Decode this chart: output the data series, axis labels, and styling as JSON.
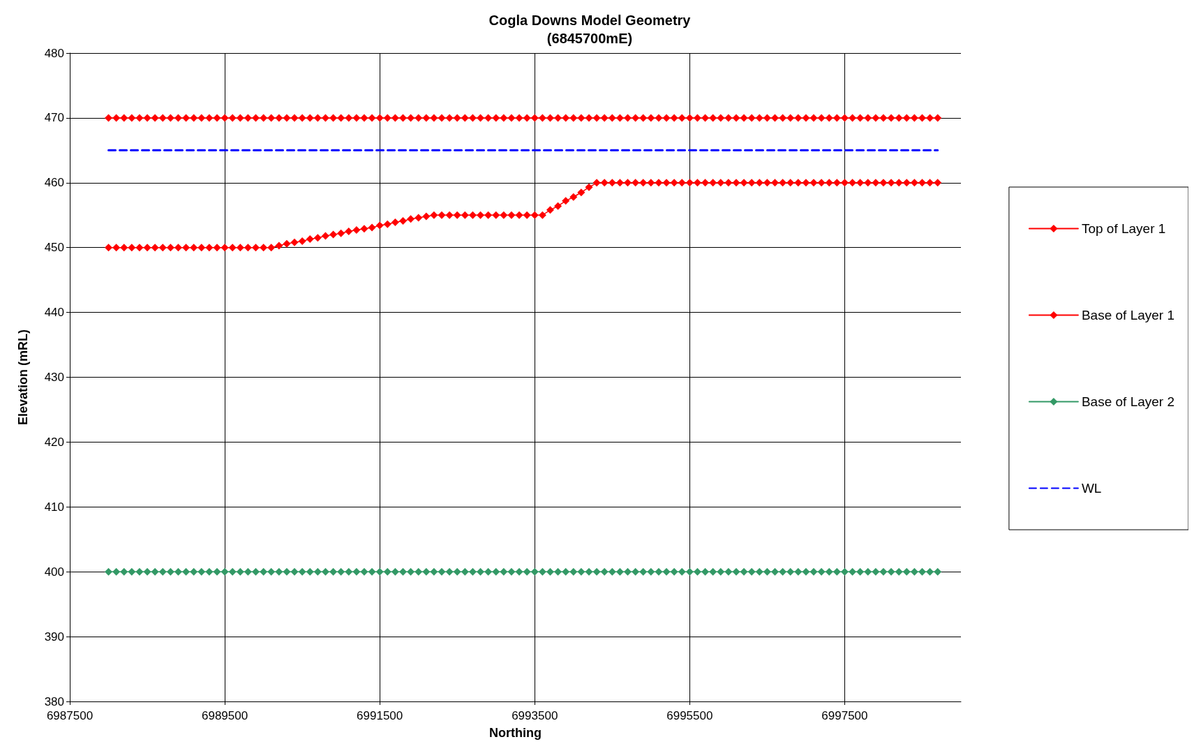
{
  "chart_data": {
    "type": "line",
    "title": "Cogla Downs Model Geometry",
    "subtitle": "(6845700mE)",
    "xlabel": "Northing",
    "ylabel": "Elevation (mRL)",
    "x": [
      6988000,
      6988100,
      6988200,
      6988300,
      6988400,
      6988500,
      6988600,
      6988700,
      6988800,
      6988900,
      6989000,
      6989100,
      6989200,
      6989300,
      6989400,
      6989500,
      6989600,
      6989700,
      6989800,
      6989900,
      6990000,
      6990100,
      6990200,
      6990300,
      6990400,
      6990500,
      6990600,
      6990700,
      6990800,
      6990900,
      6991000,
      6991100,
      6991200,
      6991300,
      6991400,
      6991500,
      6991600,
      6991700,
      6991800,
      6991900,
      6992000,
      6992100,
      6992200,
      6992300,
      6992400,
      6992500,
      6992600,
      6992700,
      6992800,
      6992900,
      6993000,
      6993100,
      6993200,
      6993300,
      6993400,
      6993500,
      6993600,
      6993700,
      6993800,
      6993900,
      6994000,
      6994100,
      6994200,
      6994300,
      6994400,
      6994500,
      6994600,
      6994700,
      6994800,
      6994900,
      6995000,
      6995100,
      6995200,
      6995300,
      6995400,
      6995500,
      6995600,
      6995700,
      6995800,
      6995900,
      6996000,
      6996100,
      6996200,
      6996300,
      6996400,
      6996500,
      6996600,
      6996700,
      6996800,
      6996900,
      6997000,
      6997100,
      6997200,
      6997300,
      6997400,
      6997500,
      6997600,
      6997700,
      6997800,
      6997900,
      6998000,
      6998100,
      6998200,
      6998300,
      6998400,
      6998500,
      6998600,
      6998700
    ],
    "series": [
      {
        "name": "Top of Layer 1",
        "color": "#ff0000",
        "marker": "diamond",
        "line_style": "solid",
        "values": [
          470,
          470,
          470,
          470,
          470,
          470,
          470,
          470,
          470,
          470,
          470,
          470,
          470,
          470,
          470,
          470,
          470,
          470,
          470,
          470,
          470,
          470,
          470,
          470,
          470,
          470,
          470,
          470,
          470,
          470,
          470,
          470,
          470,
          470,
          470,
          470,
          470,
          470,
          470,
          470,
          470,
          470,
          470,
          470,
          470,
          470,
          470,
          470,
          470,
          470,
          470,
          470,
          470,
          470,
          470,
          470,
          470,
          470,
          470,
          470,
          470,
          470,
          470,
          470,
          470,
          470,
          470,
          470,
          470,
          470,
          470,
          470,
          470,
          470,
          470,
          470,
          470,
          470,
          470,
          470,
          470,
          470,
          470,
          470,
          470,
          470,
          470,
          470,
          470,
          470,
          470,
          470,
          470,
          470,
          470,
          470,
          470,
          470,
          470,
          470,
          470,
          470,
          470,
          470,
          470,
          470,
          470,
          470
        ]
      },
      {
        "name": "Base of Layer 1",
        "color": "#ff0000",
        "marker": "diamond",
        "line_style": "solid",
        "values": [
          450,
          450,
          450,
          450,
          450,
          450,
          450,
          450,
          450,
          450,
          450,
          450,
          450,
          450,
          450,
          450,
          450,
          450,
          450,
          450,
          450,
          450,
          450.3,
          450.6,
          450.8,
          451.0,
          451.3,
          451.5,
          451.8,
          452.0,
          452.2,
          452.5,
          452.7,
          452.9,
          453.1,
          453.4,
          453.6,
          453.9,
          454.1,
          454.4,
          454.6,
          454.8,
          455,
          455,
          455,
          455,
          455,
          455,
          455,
          455,
          455,
          455,
          455,
          455,
          455,
          455,
          455,
          455.8,
          456.4,
          457.2,
          457.8,
          458.5,
          459.3,
          460,
          460,
          460,
          460,
          460,
          460,
          460,
          460,
          460,
          460,
          460,
          460,
          460,
          460,
          460,
          460,
          460,
          460,
          460,
          460,
          460,
          460,
          460,
          460,
          460,
          460,
          460,
          460,
          460,
          460,
          460,
          460,
          460,
          460,
          460,
          460,
          460,
          460,
          460,
          460,
          460,
          460,
          460,
          460,
          460
        ]
      },
      {
        "name": "Base of Layer 2",
        "color": "#339966",
        "marker": "diamond",
        "line_style": "solid",
        "values": [
          400,
          400,
          400,
          400,
          400,
          400,
          400,
          400,
          400,
          400,
          400,
          400,
          400,
          400,
          400,
          400,
          400,
          400,
          400,
          400,
          400,
          400,
          400,
          400,
          400,
          400,
          400,
          400,
          400,
          400,
          400,
          400,
          400,
          400,
          400,
          400,
          400,
          400,
          400,
          400,
          400,
          400,
          400,
          400,
          400,
          400,
          400,
          400,
          400,
          400,
          400,
          400,
          400,
          400,
          400,
          400,
          400,
          400,
          400,
          400,
          400,
          400,
          400,
          400,
          400,
          400,
          400,
          400,
          400,
          400,
          400,
          400,
          400,
          400,
          400,
          400,
          400,
          400,
          400,
          400,
          400,
          400,
          400,
          400,
          400,
          400,
          400,
          400,
          400,
          400,
          400,
          400,
          400,
          400,
          400,
          400,
          400,
          400,
          400,
          400,
          400,
          400,
          400,
          400,
          400,
          400,
          400,
          400
        ]
      },
      {
        "name": "WL",
        "color": "#0000ff",
        "marker": "none",
        "line_style": "dashed",
        "values": [
          465,
          465,
          465,
          465,
          465,
          465,
          465,
          465,
          465,
          465,
          465,
          465,
          465,
          465,
          465,
          465,
          465,
          465,
          465,
          465,
          465,
          465,
          465,
          465,
          465,
          465,
          465,
          465,
          465,
          465,
          465,
          465,
          465,
          465,
          465,
          465,
          465,
          465,
          465,
          465,
          465,
          465,
          465,
          465,
          465,
          465,
          465,
          465,
          465,
          465,
          465,
          465,
          465,
          465,
          465,
          465,
          465,
          465,
          465,
          465,
          465,
          465,
          465,
          465,
          465,
          465,
          465,
          465,
          465,
          465,
          465,
          465,
          465,
          465,
          465,
          465,
          465,
          465,
          465,
          465,
          465,
          465,
          465,
          465,
          465,
          465,
          465,
          465,
          465,
          465,
          465,
          465,
          465,
          465,
          465,
          465,
          465,
          465,
          465,
          465,
          465,
          465,
          465,
          465,
          465,
          465,
          465,
          465
        ]
      }
    ],
    "xlim": [
      6987500,
      6999000
    ],
    "xticks": [
      6987500,
      6989500,
      6991500,
      6993500,
      6995500,
      6997500
    ],
    "ylim": [
      380,
      480
    ],
    "yticks": [
      380,
      390,
      400,
      410,
      420,
      430,
      440,
      450,
      460,
      470,
      480
    ],
    "grid": true,
    "legend": "right"
  }
}
